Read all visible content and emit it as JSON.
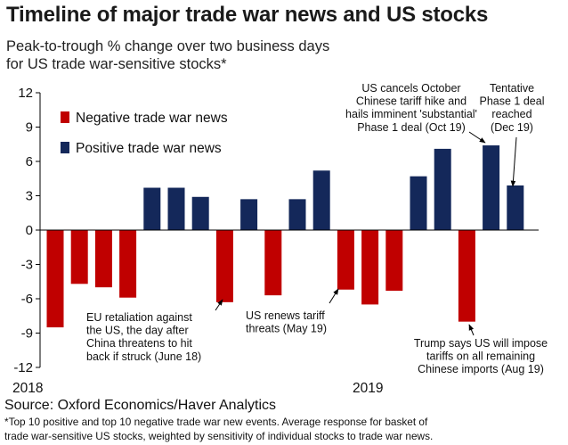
{
  "title": "Timeline of major trade war news and US stocks",
  "subtitle_lines": [
    "Peak-to-trough % change over two business days",
    "for US trade war-sensitive stocks*"
  ],
  "source": "Source: Oxford Economics/Haver Analytics",
  "footnote_lines": [
    "*Top 10 positive and top 10 negative trade war new events. Average response for basket of",
    "trade war-sensitive US stocks, weighted by sensitivity of individual stocks to trade war news."
  ],
  "colors": {
    "negative": "#c00000",
    "positive": "#14285a",
    "axis": "#000000"
  },
  "chart_data": {
    "type": "bar",
    "title": "Timeline of major trade war news and US stocks",
    "ylim": [
      -12,
      12
    ],
    "yticks": [
      12,
      9,
      6,
      3,
      0,
      -3,
      -6,
      -9,
      -12
    ],
    "x_labels": [
      "2018",
      "2019"
    ],
    "legend_placement": "top-left",
    "series": [
      {
        "name": "Negative trade war news",
        "key": "negative"
      },
      {
        "name": "Positive trade war news",
        "key": "positive"
      }
    ],
    "bars": [
      {
        "value": -8.5,
        "type": "negative"
      },
      {
        "value": -4.7,
        "type": "negative"
      },
      {
        "value": -5.0,
        "type": "negative"
      },
      {
        "value": -5.9,
        "type": "negative"
      },
      {
        "value": 3.7,
        "type": "positive"
      },
      {
        "value": 3.7,
        "type": "positive"
      },
      {
        "value": 2.9,
        "type": "positive"
      },
      {
        "value": -6.3,
        "type": "negative"
      },
      {
        "value": 2.7,
        "type": "positive"
      },
      {
        "value": -5.7,
        "type": "negative"
      },
      {
        "value": 2.7,
        "type": "positive"
      },
      {
        "value": 5.2,
        "type": "positive"
      },
      {
        "value": -5.2,
        "type": "negative"
      },
      {
        "value": -6.5,
        "type": "negative"
      },
      {
        "value": -5.3,
        "type": "negative"
      },
      {
        "value": 4.7,
        "type": "positive"
      },
      {
        "value": 7.1,
        "type": "positive"
      },
      {
        "value": -8.0,
        "type": "negative"
      },
      {
        "value": 7.4,
        "type": "positive"
      },
      {
        "value": 3.9,
        "type": "positive"
      }
    ],
    "annotations": [
      {
        "bar": 7,
        "lines": [
          "EU retaliation against",
          "the US, the day after",
          "China threatens to hit",
          "back if struck (June 18)"
        ]
      },
      {
        "bar": 12,
        "lines": [
          "US renews tariff",
          "threats (May 19)"
        ]
      },
      {
        "bar": 17,
        "lines": [
          "Trump says US will impose",
          "tariffs on all remaining",
          "Chinese imports (Aug 19)"
        ]
      },
      {
        "bar": 18,
        "lines": [
          "US cancels October",
          "Chinese tariff hike and",
          "hails imminent 'substantial'",
          "Phase 1 deal (Oct 19)"
        ]
      },
      {
        "bar": 19,
        "lines": [
          "Tentative",
          "Phase 1 deal",
          "reached",
          "(Dec 19)"
        ]
      }
    ]
  }
}
